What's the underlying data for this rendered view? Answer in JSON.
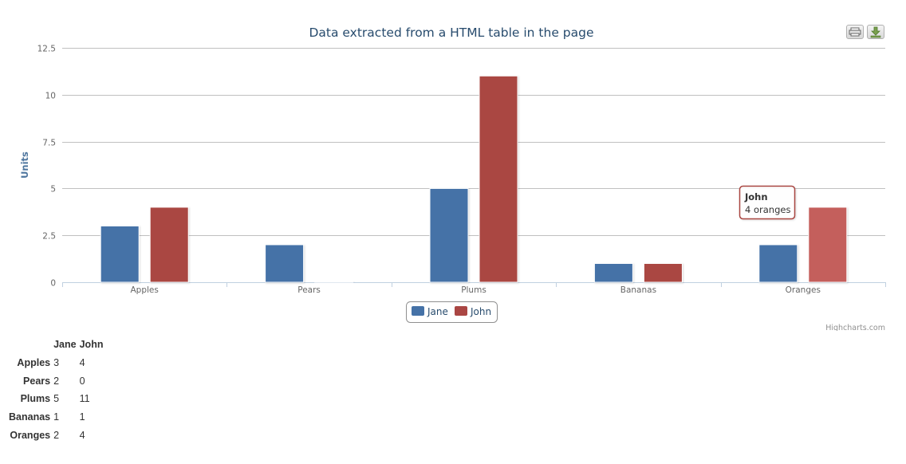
{
  "chart_data": {
    "type": "bar",
    "title": "Data extracted from a HTML table in the page",
    "xlabel": "",
    "ylabel": "Units",
    "categories": [
      "Apples",
      "Pears",
      "Plums",
      "Bananas",
      "Oranges"
    ],
    "series": [
      {
        "name": "Jane",
        "color": "#4572a7",
        "values": [
          3,
          2,
          5,
          1,
          2
        ]
      },
      {
        "name": "John",
        "color": "#aa4643",
        "values": [
          4,
          0,
          11,
          1,
          4
        ]
      }
    ],
    "ylim": [
      0,
      12.5
    ],
    "yticks": [
      "0",
      "2.5",
      "5",
      "7.5",
      "10",
      "12.5"
    ],
    "grid": true,
    "legend": "bottom-center",
    "credits": "Highcharts.com",
    "tooltip": {
      "series": "John",
      "text": "4 oranges",
      "category": "Oranges",
      "border_color": "#aa4643"
    }
  },
  "table": {
    "header": [
      "",
      "Jane",
      "John"
    ],
    "rows": [
      {
        "label": "Apples",
        "values": [
          "3",
          "4"
        ]
      },
      {
        "label": "Pears",
        "values": [
          "2",
          "0"
        ]
      },
      {
        "label": "Plums",
        "values": [
          "5",
          "11"
        ]
      },
      {
        "label": "Bananas",
        "values": [
          "1",
          "1"
        ]
      },
      {
        "label": "Oranges",
        "values": [
          "2",
          "4"
        ]
      }
    ]
  },
  "toolbar": {
    "print_icon": "print-icon",
    "download_icon": "download-icon"
  }
}
